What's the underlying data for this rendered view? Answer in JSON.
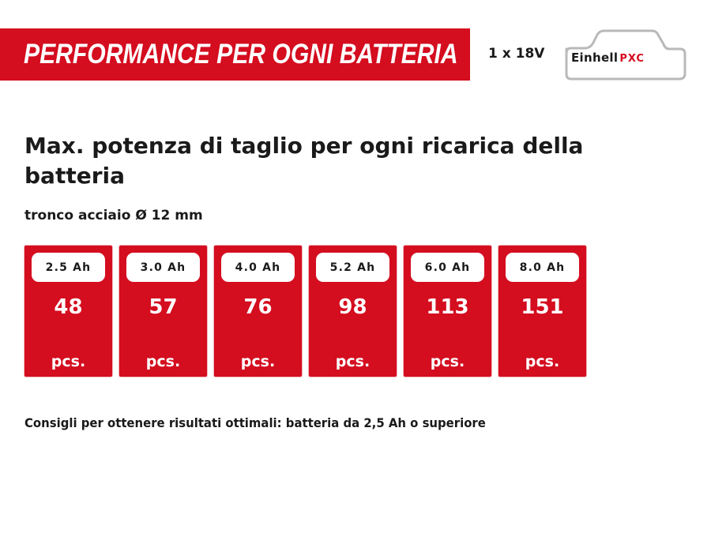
{
  "banner": {
    "title": "PERFORMANCE PER OGNI BATTERIA",
    "color": "#d40d1f"
  },
  "voltage": "1 x 18V",
  "logo": {
    "brand": "Einhell",
    "system": "PXC",
    "icon": "battery-pack-icon"
  },
  "heading": "Max. potenza di taglio per ogni ricarica della batteria",
  "subheading": "tronco acciaio Ø 12 mm",
  "cards": [
    {
      "capacity": "2.5 Ah",
      "value": "48",
      "unit": "pcs."
    },
    {
      "capacity": "3.0 Ah",
      "value": "57",
      "unit": "pcs."
    },
    {
      "capacity": "4.0 Ah",
      "value": "76",
      "unit": "pcs."
    },
    {
      "capacity": "5.2 Ah",
      "value": "98",
      "unit": "pcs."
    },
    {
      "capacity": "6.0 Ah",
      "value": "113",
      "unit": "pcs."
    },
    {
      "capacity": "8.0 Ah",
      "value": "151",
      "unit": "pcs."
    }
  ],
  "footer_note": "Consigli per ottenere risultati ottimali: batteria da 2,5 Ah o superiore"
}
